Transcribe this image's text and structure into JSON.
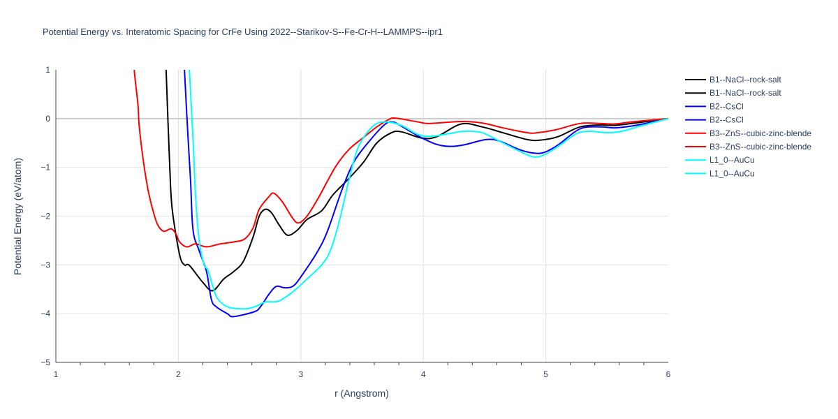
{
  "chart_data": {
    "type": "line",
    "title": "Potential Energy vs. Interatomic Spacing for CrFe Using 2022--Starikov-S--Fe-Cr-H--LAMMPS--ipr1",
    "xlabel": "r (Angstrom)",
    "ylabel": "Potential Energy (eV/atom)",
    "xlim": [
      1,
      6
    ],
    "ylim": [
      -5,
      1
    ],
    "xticks": [
      1,
      2,
      3,
      4,
      5,
      6
    ],
    "yticks": [
      1,
      0,
      -1,
      -2,
      -3,
      -4,
      -5
    ],
    "xtick_labels": [
      "1",
      "2",
      "3",
      "4",
      "5",
      "6"
    ],
    "ytick_labels": [
      "1",
      "0",
      "−1",
      "−2",
      "−3",
      "−4",
      "−5"
    ],
    "grid": true,
    "legend_position": "right",
    "legend": [
      {
        "name": "B1--NaCl--rock-salt",
        "color": "#000000"
      },
      {
        "name": "B1--NaCl--rock-salt",
        "color": "#000000"
      },
      {
        "name": "B2--CsCl",
        "color": "#0000ff"
      },
      {
        "name": "B2--CsCl",
        "color": "#0000ff"
      },
      {
        "name": "B3--ZnS--cubic-zinc-blende",
        "color": "#ff0000"
      },
      {
        "name": "B3--ZnS--cubic-zinc-blende",
        "color": "#ff0000"
      },
      {
        "name": "L1_0--AuCu",
        "color": "#00ffff"
      },
      {
        "name": "L1_0--AuCu",
        "color": "#00ffff"
      }
    ],
    "series": [
      {
        "name": "B1--NaCl--rock-salt",
        "color": "#000000",
        "x": [
          1.9,
          1.93,
          1.95,
          2.01,
          2.05,
          2.09,
          2.2,
          2.28,
          2.37,
          2.45,
          2.53,
          2.61,
          2.66,
          2.71,
          2.76,
          2.82,
          2.89,
          2.97,
          3.05,
          3.17,
          3.26,
          3.38,
          3.51,
          3.62,
          3.74,
          3.82,
          3.99,
          4.11,
          4.31,
          4.48,
          4.65,
          4.85,
          4.96,
          5.1,
          5.28,
          5.45,
          5.56,
          5.73,
          6.0
        ],
        "y": [
          1.0,
          -1.0,
          -1.86,
          -2.79,
          -3.0,
          -3.01,
          -3.36,
          -3.53,
          -3.29,
          -3.14,
          -2.93,
          -2.43,
          -2.0,
          -1.86,
          -1.93,
          -2.17,
          -2.39,
          -2.29,
          -2.07,
          -1.89,
          -1.57,
          -1.26,
          -0.9,
          -0.5,
          -0.29,
          -0.27,
          -0.4,
          -0.37,
          -0.11,
          -0.17,
          -0.29,
          -0.43,
          -0.44,
          -0.37,
          -0.17,
          -0.13,
          -0.14,
          -0.09,
          0.0
        ]
      },
      {
        "name": "B2--CsCl",
        "color": "#0000ff",
        "x": [
          2.05,
          2.08,
          2.1,
          2.12,
          2.17,
          2.23,
          2.27,
          2.31,
          2.4,
          2.45,
          2.62,
          2.67,
          2.74,
          2.8,
          2.87,
          2.94,
          3.01,
          3.14,
          3.22,
          3.34,
          3.44,
          3.57,
          3.69,
          3.75,
          3.79,
          3.96,
          4.11,
          4.22,
          4.33,
          4.51,
          4.62,
          4.79,
          4.91,
          4.99,
          5.1,
          5.28,
          5.45,
          5.56,
          5.73,
          6.0
        ],
        "y": [
          1.0,
          -0.43,
          -1.29,
          -2.29,
          -2.71,
          -3.14,
          -3.71,
          -3.86,
          -4.0,
          -4.06,
          -3.96,
          -3.86,
          -3.6,
          -3.44,
          -3.47,
          -3.43,
          -3.21,
          -2.71,
          -2.29,
          -1.43,
          -0.86,
          -0.43,
          -0.11,
          -0.07,
          -0.11,
          -0.36,
          -0.53,
          -0.57,
          -0.54,
          -0.43,
          -0.46,
          -0.64,
          -0.71,
          -0.69,
          -0.54,
          -0.21,
          -0.17,
          -0.19,
          -0.14,
          0.0
        ]
      },
      {
        "name": "B3--ZnS--cubic-zinc-blende",
        "color": "#ff0000",
        "x": [
          1.64,
          1.67,
          1.68,
          1.71,
          1.75,
          1.79,
          1.83,
          1.88,
          1.94,
          1.98,
          2.01,
          2.07,
          2.14,
          2.23,
          2.34,
          2.45,
          2.54,
          2.61,
          2.66,
          2.74,
          2.78,
          2.85,
          2.93,
          2.98,
          3.05,
          3.14,
          3.28,
          3.39,
          3.51,
          3.62,
          3.71,
          3.77,
          3.96,
          4.05,
          4.31,
          4.48,
          4.65,
          4.85,
          4.93,
          5.08,
          5.28,
          5.45,
          5.56,
          5.73,
          6.0
        ],
        "y": [
          1.0,
          0.29,
          -0.14,
          -0.79,
          -1.43,
          -1.86,
          -2.17,
          -2.31,
          -2.26,
          -2.36,
          -2.53,
          -2.63,
          -2.57,
          -2.63,
          -2.57,
          -2.53,
          -2.47,
          -2.24,
          -1.86,
          -1.6,
          -1.53,
          -1.71,
          -2.03,
          -2.14,
          -2.0,
          -1.64,
          -1.0,
          -0.64,
          -0.39,
          -0.17,
          -0.03,
          0.01,
          -0.07,
          -0.1,
          -0.06,
          -0.09,
          -0.19,
          -0.29,
          -0.29,
          -0.23,
          -0.1,
          -0.1,
          -0.11,
          -0.06,
          0.0
        ]
      },
      {
        "name": "L1_0--AuCu",
        "color": "#00ffff",
        "x": [
          2.09,
          2.12,
          2.14,
          2.17,
          2.21,
          2.24,
          2.28,
          2.32,
          2.4,
          2.5,
          2.58,
          2.65,
          2.71,
          2.82,
          2.94,
          3.05,
          3.17,
          3.24,
          3.31,
          3.39,
          3.46,
          3.54,
          3.62,
          3.71,
          3.82,
          3.96,
          4.08,
          4.25,
          4.33,
          4.48,
          4.65,
          4.82,
          4.91,
          4.99,
          5.1,
          5.25,
          5.36,
          5.5,
          5.62,
          5.79,
          6.0
        ],
        "y": [
          1.0,
          -0.43,
          -1.57,
          -2.5,
          -3.0,
          -3.1,
          -3.43,
          -3.69,
          -3.86,
          -3.9,
          -3.89,
          -3.83,
          -3.76,
          -3.74,
          -3.54,
          -3.29,
          -3.0,
          -2.71,
          -2.14,
          -1.29,
          -0.64,
          -0.29,
          -0.1,
          -0.07,
          -0.14,
          -0.33,
          -0.36,
          -0.29,
          -0.26,
          -0.29,
          -0.5,
          -0.71,
          -0.79,
          -0.74,
          -0.57,
          -0.31,
          -0.26,
          -0.29,
          -0.26,
          -0.14,
          0.0
        ]
      }
    ]
  }
}
